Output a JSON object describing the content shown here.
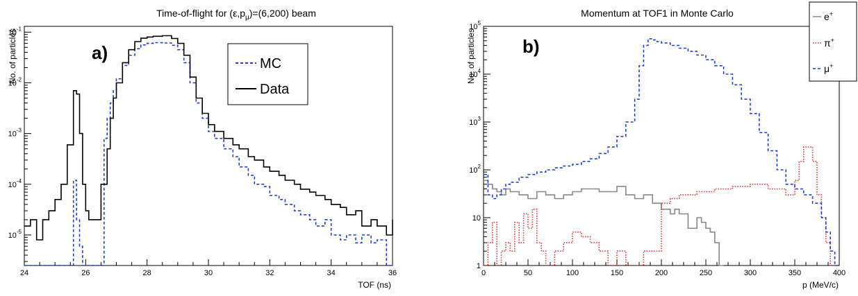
{
  "chart_data": [
    {
      "type": "line",
      "panel_label": "a)",
      "title": "Time-of-flight for (ε,pμ)=(6,200) beam",
      "title_parts": {
        "prefix": "Time-of-flight for (ε,p",
        "sub": "μ",
        "suffix": ")=(6,200) beam"
      },
      "xlabel": "TOF (ns)",
      "ylabel": "No. of particles",
      "xlim": [
        24,
        36
      ],
      "ylim": [
        2.5e-06,
        0.13
      ],
      "yscale": "log",
      "xticks": [
        "24",
        "26",
        "28",
        "30",
        "32",
        "34",
        "36"
      ],
      "yticks": [
        {
          "base": "10",
          "exp": "-5"
        },
        {
          "base": "10",
          "exp": "-4"
        },
        {
          "base": "10",
          "exp": "-3"
        },
        {
          "base": "10",
          "exp": "-2"
        },
        {
          "base": "10",
          "exp": "-1"
        }
      ],
      "legend_position": "top-right",
      "series": [
        {
          "name": "MC",
          "color": "#1f3fd8",
          "style": "dashed",
          "x": [
            24.0,
            25.5,
            25.6,
            25.7,
            25.8,
            25.9,
            26.0,
            26.5,
            26.6,
            26.7,
            26.8,
            26.9,
            27.0,
            27.2,
            27.4,
            27.6,
            27.8,
            28.0,
            28.2,
            28.5,
            28.8,
            29.0,
            29.2,
            29.4,
            29.6,
            29.8,
            30.0,
            30.2,
            30.5,
            30.8,
            31.0,
            31.3,
            31.5,
            31.8,
            32.0,
            32.3,
            32.5,
            32.8,
            33.0,
            33.3,
            33.5,
            33.8,
            34.0,
            34.3,
            34.5,
            34.8,
            35.0,
            35.3,
            35.5,
            35.8,
            36.0
          ],
          "y": [
            2.5e-06,
            2.5e-06,
            0.00012,
            2e-05,
            6e-06,
            2.5e-06,
            2.5e-06,
            2.5e-06,
            0.0008,
            0.002,
            0.004,
            0.007,
            0.012,
            0.022,
            0.035,
            0.047,
            0.056,
            0.06,
            0.062,
            0.061,
            0.055,
            0.045,
            0.025,
            0.01,
            0.004,
            0.002,
            0.0011,
            0.0008,
            0.0005,
            0.00035,
            0.00022,
            0.00015,
            0.0001,
            9e-05,
            6e-05,
            5e-05,
            4e-05,
            3e-05,
            2.5e-05,
            2e-05,
            1.5e-05,
            2e-05,
            1e-05,
            8e-06,
            1e-05,
            7e-06,
            1e-05,
            7e-06,
            8e-06,
            2.5e-06,
            2.5e-06
          ]
        },
        {
          "name": "Data",
          "color": "#000000",
          "style": "solid",
          "x": [
            24.0,
            24.2,
            24.4,
            24.6,
            24.8,
            25.0,
            25.2,
            25.4,
            25.6,
            25.7,
            25.8,
            25.9,
            26.0,
            26.1,
            26.3,
            26.5,
            26.7,
            26.8,
            26.9,
            27.0,
            27.2,
            27.4,
            27.6,
            27.8,
            28.0,
            28.2,
            28.5,
            28.8,
            29.0,
            29.2,
            29.4,
            29.6,
            29.8,
            30.0,
            30.2,
            30.5,
            30.8,
            31.0,
            31.3,
            31.5,
            31.8,
            32.0,
            32.3,
            32.5,
            32.8,
            33.0,
            33.3,
            33.5,
            33.8,
            34.0,
            34.3,
            34.5,
            34.8,
            35.0,
            35.3,
            35.5,
            35.8,
            36.0
          ],
          "y": [
            1.5e-05,
            2e-05,
            8e-06,
            2e-05,
            3e-05,
            5e-05,
            0.0001,
            0.0006,
            0.007,
            0.006,
            0.001,
            0.0001,
            3e-05,
            2e-05,
            2e-05,
            0.0001,
            0.0005,
            0.002,
            0.005,
            0.01,
            0.025,
            0.045,
            0.065,
            0.076,
            0.08,
            0.083,
            0.085,
            0.075,
            0.06,
            0.035,
            0.013,
            0.005,
            0.0025,
            0.0015,
            0.0011,
            0.0008,
            0.0006,
            0.0005,
            0.00035,
            0.0003,
            0.00022,
            0.00018,
            0.00015,
            0.00012,
            0.0001,
            8e-05,
            7e-05,
            6e-05,
            5e-05,
            4e-05,
            3.5e-05,
            2.5e-05,
            3e-05,
            1.5e-05,
            2e-05,
            1.5e-05,
            1e-05,
            2e-05
          ]
        }
      ]
    },
    {
      "type": "line",
      "panel_label": "b)",
      "title": "Momentum at TOF1 in Monte Carlo",
      "xlabel": "p (MeV/c)",
      "ylabel": "No. of particles",
      "xlim": [
        0,
        400
      ],
      "ylim": [
        1,
        100000
      ],
      "yscale": "log",
      "xticks": [
        "0",
        "50",
        "100",
        "150",
        "200",
        "250",
        "300",
        "350",
        "400"
      ],
      "yticks": [
        {
          "base": "1",
          "exp": ""
        },
        {
          "base": "10",
          "exp": ""
        },
        {
          "base": "10",
          "exp": "2"
        },
        {
          "base": "10",
          "exp": "3"
        },
        {
          "base": "10",
          "exp": "4"
        },
        {
          "base": "10",
          "exp": "5"
        }
      ],
      "legend_position": "top-right",
      "series": [
        {
          "name": "e",
          "sup": "+",
          "color": "#888888",
          "style": "solid",
          "x": [
            0,
            5,
            10,
            15,
            20,
            25,
            30,
            40,
            50,
            60,
            70,
            80,
            90,
            100,
            110,
            120,
            130,
            140,
            150,
            160,
            170,
            180,
            190,
            200,
            210,
            215,
            220,
            230,
            240,
            245,
            250,
            255,
            260,
            265,
            270
          ],
          "y": [
            60,
            50,
            40,
            35,
            30,
            40,
            35,
            30,
            25,
            35,
            30,
            25,
            30,
            35,
            40,
            40,
            35,
            35,
            45,
            30,
            25,
            30,
            20,
            15,
            12,
            15,
            12,
            6,
            10,
            8,
            6,
            5,
            3,
            1,
            1
          ]
        },
        {
          "name": "π",
          "sup": "+",
          "color": "#d93030",
          "style": "dotted",
          "x": [
            0,
            5,
            10,
            15,
            20,
            25,
            30,
            35,
            40,
            45,
            50,
            55,
            60,
            65,
            70,
            80,
            90,
            100,
            110,
            120,
            130,
            140,
            150,
            160,
            170,
            180,
            190,
            200,
            210,
            220,
            240,
            260,
            280,
            300,
            320,
            340,
            350,
            355,
            360,
            365,
            370,
            375,
            380,
            385,
            390,
            395,
            400
          ],
          "y": [
            1,
            3,
            8,
            1,
            2,
            3,
            2,
            8,
            3,
            12,
            6,
            15,
            3,
            2,
            1,
            2,
            3,
            5,
            4,
            3,
            2,
            1,
            2,
            1,
            1,
            2,
            2,
            20,
            25,
            30,
            35,
            40,
            45,
            50,
            40,
            30,
            60,
            150,
            300,
            300,
            150,
            30,
            10,
            3,
            1,
            1,
            1
          ]
        },
        {
          "name": "μ",
          "sup": "+",
          "color": "#1f3fd8",
          "style": "dashed",
          "x": [
            0,
            5,
            10,
            15,
            20,
            25,
            30,
            40,
            50,
            60,
            70,
            80,
            90,
            100,
            110,
            120,
            130,
            140,
            150,
            160,
            170,
            175,
            180,
            185,
            190,
            195,
            200,
            210,
            220,
            230,
            240,
            250,
            260,
            270,
            280,
            290,
            300,
            310,
            320,
            330,
            340,
            350,
            360,
            370,
            380,
            385,
            390,
            395,
            400
          ],
          "y": [
            80,
            30,
            25,
            30,
            40,
            50,
            55,
            70,
            80,
            90,
            100,
            110,
            120,
            130,
            150,
            170,
            220,
            300,
            500,
            1000,
            3000,
            15000,
            40000,
            55000,
            52000,
            48000,
            45000,
            40000,
            35000,
            30000,
            25000,
            20000,
            15000,
            10000,
            6000,
            3000,
            1500,
            600,
            250,
            100,
            50,
            40,
            30,
            20,
            10,
            5,
            2,
            1,
            1
          ]
        }
      ]
    }
  ]
}
